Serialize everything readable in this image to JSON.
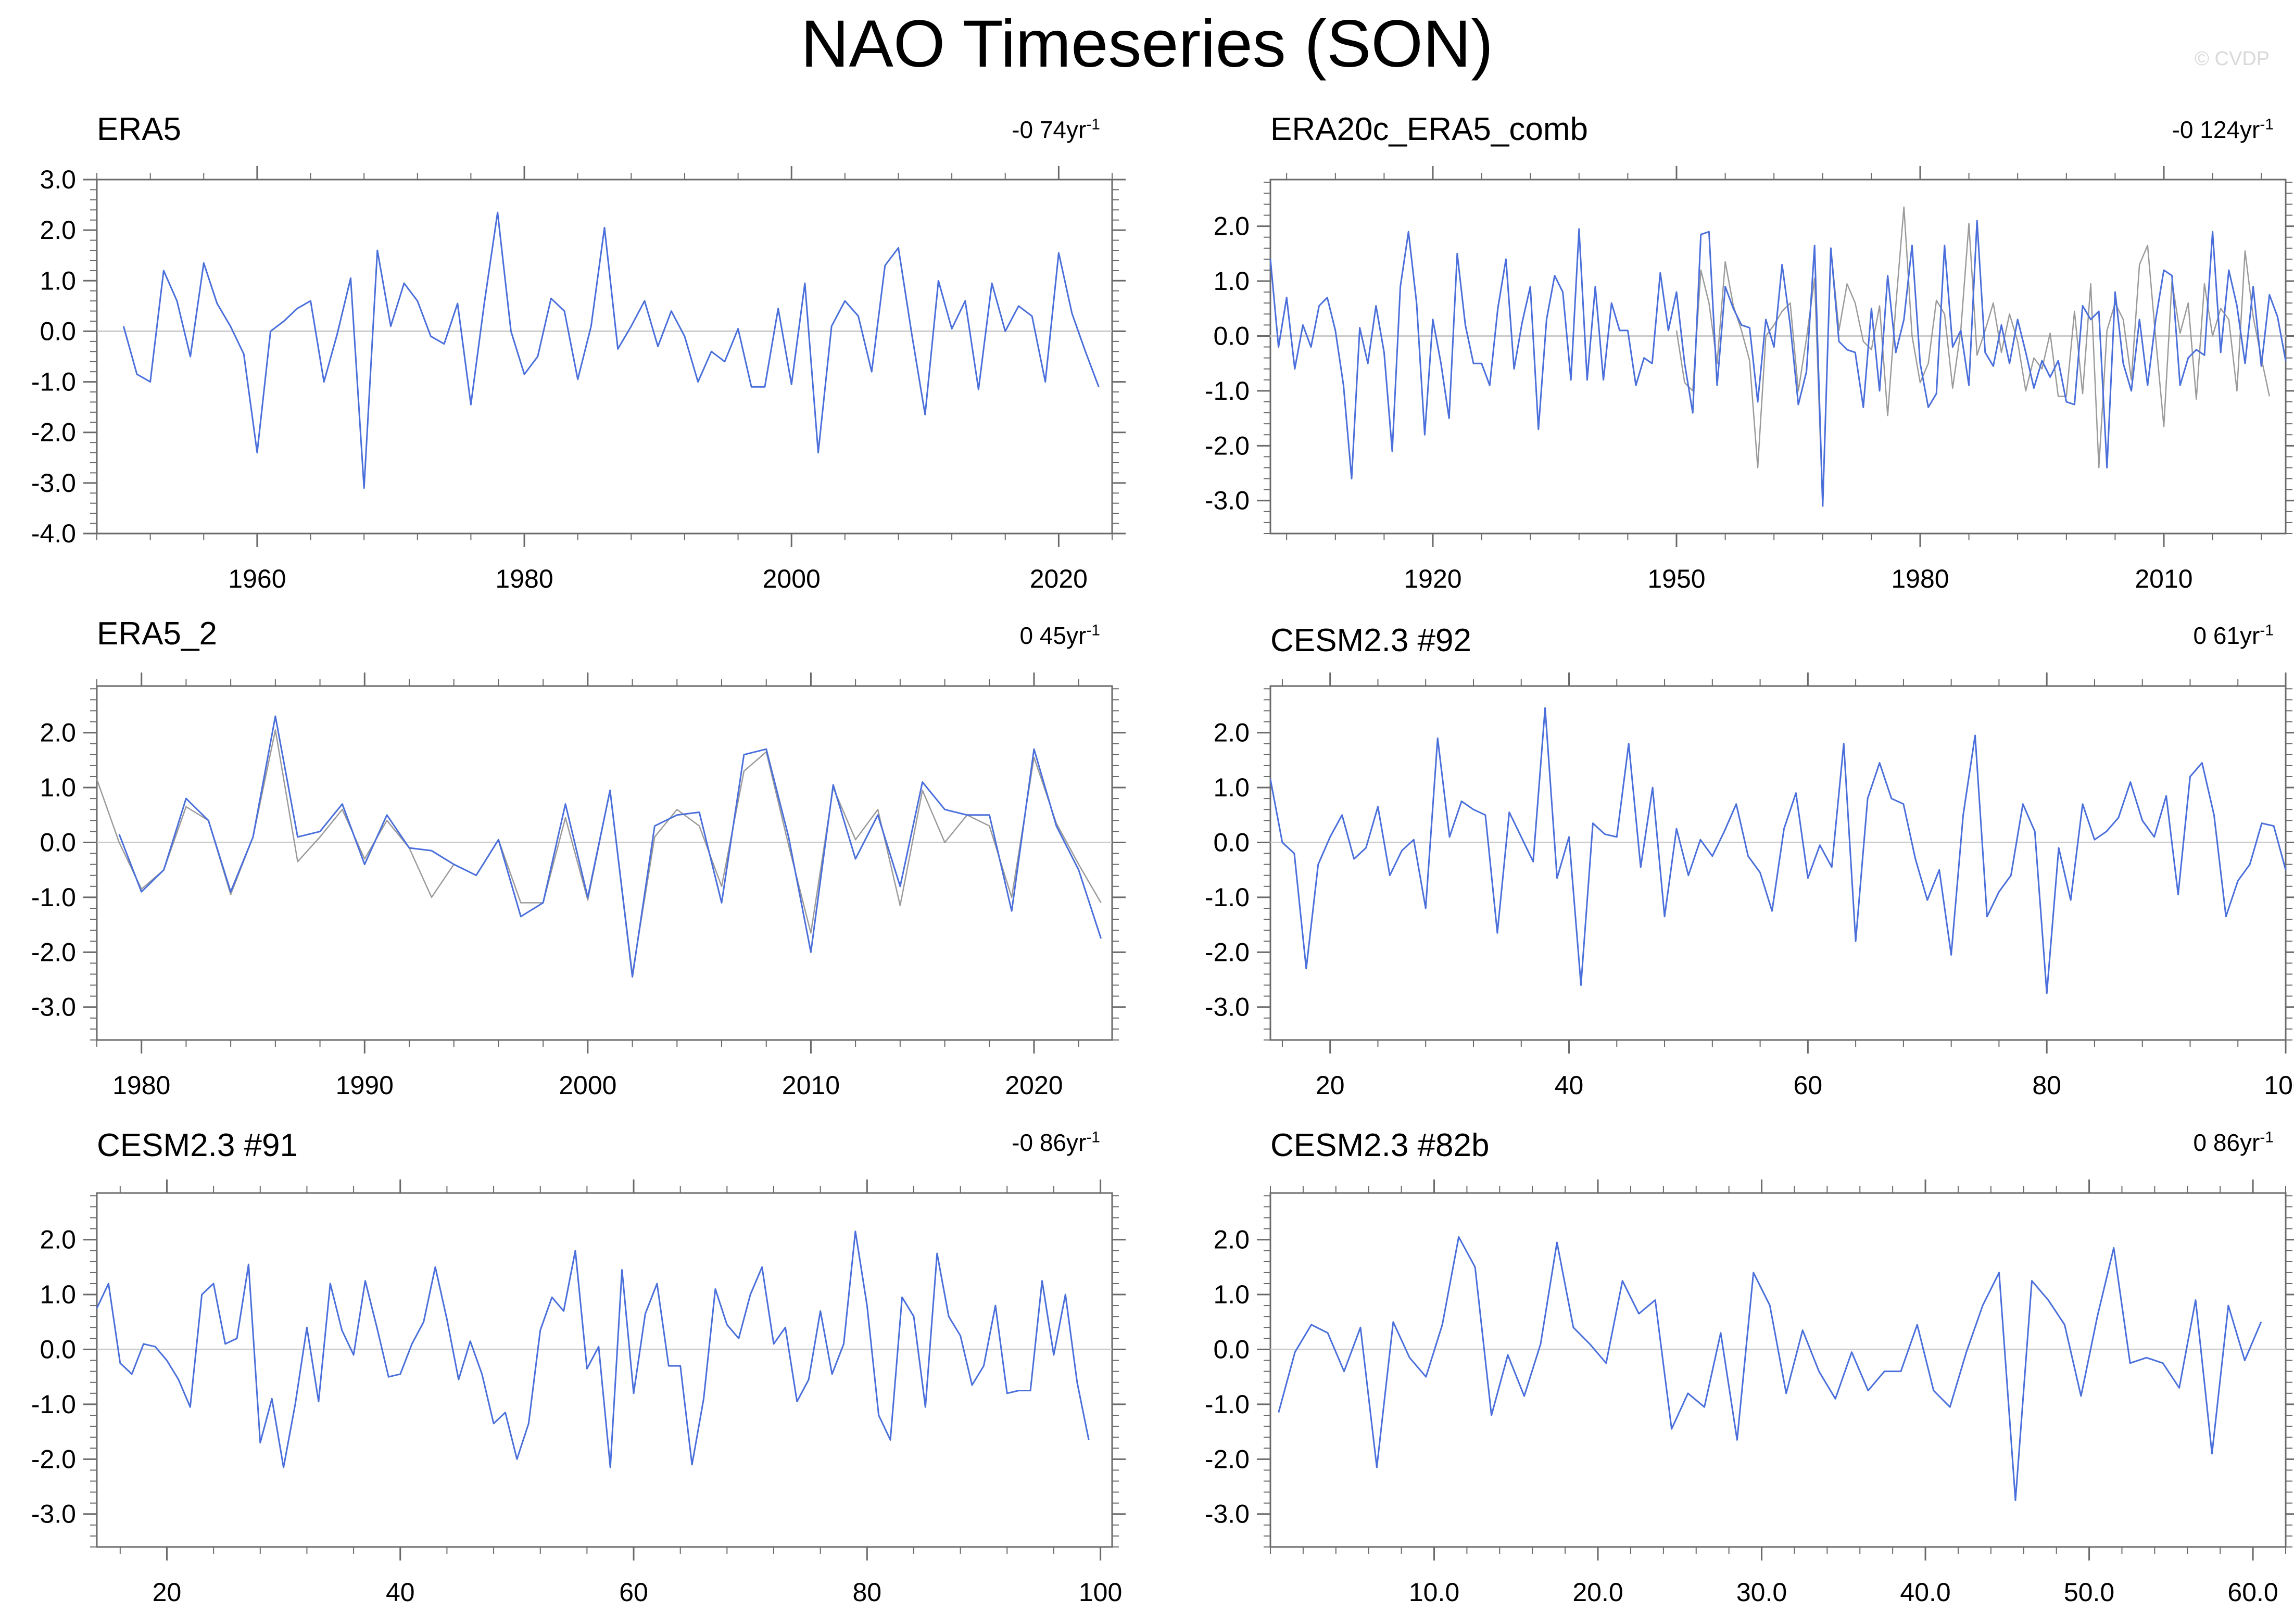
{
  "figure": {
    "title": "NAO Timeseries (SON)",
    "watermark": "© CVDP"
  },
  "colors": {
    "primary": "#4a6fdb",
    "secondary": "#9a9a9a",
    "zero_line": "#cccccc",
    "frame": "#6a6a6a"
  },
  "chart_data": [
    {
      "type": "line",
      "title": "ERA5",
      "trend_value": "-0 74yr",
      "trend_unit_exp": "-1",
      "xlim": [
        1948,
        2024
      ],
      "ylim": [
        -4.0,
        3.0
      ],
      "xticks": [
        1960,
        1980,
        2000,
        2020
      ],
      "xtick_labels": [
        "1960",
        "1980",
        "2000",
        "2020"
      ],
      "yticks": [
        -4,
        -3,
        -2,
        -1,
        0,
        1,
        2,
        3
      ],
      "ytick_labels": [
        "-4.0",
        "-3.0",
        "-2.0",
        "-1.0",
        "0.0",
        "1.0",
        "2.0",
        "3.0"
      ],
      "series": [
        {
          "name": "ERA5",
          "x_start": 1950,
          "x_step": 1,
          "values": [
            0.1,
            -0.85,
            -1.0,
            1.2,
            0.6,
            -0.5,
            1.35,
            0.55,
            0.1,
            -0.45,
            -2.4,
            0.0,
            0.2,
            0.45,
            0.6,
            -1.0,
            -0.05,
            1.05,
            -3.1,
            1.6,
            0.1,
            0.95,
            0.6,
            -0.1,
            -0.25,
            0.55,
            -1.45,
            0.55,
            2.35,
            0.0,
            -0.85,
            -0.5,
            0.65,
            0.4,
            -0.95,
            0.1,
            2.05,
            -0.35,
            0.1,
            0.6,
            -0.3,
            0.4,
            -0.1,
            -1.0,
            -0.4,
            -0.6,
            0.05,
            -1.1,
            -1.1,
            0.45,
            -1.05,
            0.95,
            -2.4,
            0.1,
            0.6,
            0.3,
            -0.8,
            1.3,
            1.65,
            -0.05,
            -1.65,
            1.0,
            0.05,
            0.6,
            -1.15,
            0.95,
            0.0,
            0.5,
            0.3,
            -1.0,
            1.55,
            0.35,
            -0.4,
            -1.1
          ]
        }
      ]
    },
    {
      "type": "line",
      "title": "ERA20c_ERA5_comb",
      "trend_value": "-0 124yr",
      "trend_unit_exp": "-1",
      "xlim": [
        1900,
        2025
      ],
      "ylim": [
        -3.6,
        2.85
      ],
      "xticks": [
        1920,
        1950,
        1980,
        2010
      ],
      "xtick_labels": [
        "1920",
        "1950",
        "1980",
        "2010"
      ],
      "yticks": [
        -3,
        -2,
        -1,
        0,
        1,
        2
      ],
      "ytick_labels": [
        "-3.0",
        "-2.0",
        "-1.0",
        "0.0",
        "1.0",
        "2.0"
      ],
      "series": [
        {
          "name": "ERA20c",
          "x_start": 1900,
          "x_step": 1,
          "values": [
            1.4,
            -0.2,
            0.7,
            -0.6,
            0.2,
            -0.2,
            0.55,
            0.7,
            0.1,
            -0.9,
            -2.6,
            0.15,
            -0.5,
            0.55,
            -0.3,
            -2.1,
            0.9,
            1.9,
            0.6,
            -1.8,
            0.3,
            -0.5,
            -1.5,
            1.5,
            0.2,
            -0.5,
            -0.5,
            -0.9,
            0.5,
            1.4,
            -0.6,
            0.25,
            0.9,
            -1.7,
            0.3,
            1.1,
            0.8,
            -0.8,
            1.95,
            -0.8,
            0.9,
            -0.8,
            0.6,
            0.1,
            0.1,
            -0.9,
            -0.4,
            -0.5,
            1.15,
            0.1,
            0.8,
            -0.5,
            -1.4,
            1.85,
            1.9,
            -0.9,
            0.9,
            0.5,
            0.2,
            0.15,
            -1.2,
            0.3,
            -0.2,
            1.3,
            0.2,
            -1.25,
            -0.65,
            1.65,
            -3.1,
            1.6,
            -0.1,
            -0.25,
            -0.3,
            -1.3,
            0.5,
            -1.0,
            1.1,
            -0.3,
            0.3,
            1.65,
            -0.5,
            -1.3,
            -1.05,
            1.65,
            -0.2,
            0.1,
            -0.9,
            2.1,
            -0.3,
            -0.55,
            0.2,
            -0.5,
            0.3,
            -0.3,
            -0.95,
            -0.45,
            -0.75,
            -0.45,
            -1.2,
            -1.25,
            0.55,
            0.3,
            0.45,
            -2.4,
            0.8,
            -0.5,
            -1.0,
            0.3,
            -0.9,
            0.3,
            1.2,
            1.1,
            -0.9,
            -0.4,
            -0.25,
            -0.35,
            1.9,
            -0.3,
            1.2,
            0.55,
            -0.5,
            0.9,
            -0.55,
            0.75,
            0.35,
            -0.45
          ]
        },
        {
          "name": "ERA5",
          "x_start": 1950,
          "x_step": 1,
          "values": [
            0.1,
            -0.85,
            -1.0,
            1.2,
            0.6,
            -0.5,
            1.35,
            0.55,
            0.1,
            -0.45,
            -2.4,
            0.0,
            0.2,
            0.45,
            0.6,
            -1.0,
            -0.05,
            1.05,
            -3.1,
            1.6,
            0.1,
            0.95,
            0.6,
            -0.1,
            -0.25,
            0.55,
            -1.45,
            0.55,
            2.35,
            0.0,
            -0.85,
            -0.5,
            0.65,
            0.4,
            -0.95,
            0.1,
            2.05,
            -0.35,
            0.1,
            0.6,
            -0.3,
            0.4,
            -0.1,
            -1.0,
            -0.4,
            -0.6,
            0.05,
            -1.1,
            -1.1,
            0.45,
            -1.05,
            0.95,
            -2.4,
            0.1,
            0.6,
            0.3,
            -0.8,
            1.3,
            1.65,
            -0.05,
            -1.65,
            1.0,
            0.05,
            0.6,
            -1.15,
            0.95,
            0.0,
            0.5,
            0.3,
            -1.0,
            1.55,
            0.35,
            -0.4,
            -1.1
          ]
        }
      ]
    },
    {
      "type": "line",
      "title": "ERA5_2",
      "trend_value": "0 45yr",
      "trend_unit_exp": "-1",
      "xlim": [
        1978,
        2023.5
      ],
      "ylim": [
        -3.6,
        2.85
      ],
      "xticks": [
        1980,
        1990,
        2000,
        2010,
        2020
      ],
      "xtick_labels": [
        "1980",
        "1990",
        "2000",
        "2010",
        "2020"
      ],
      "yticks": [
        -3,
        -2,
        -1,
        0,
        1,
        2
      ],
      "ytick_labels": [
        "-3.0",
        "-2.0",
        "-1.0",
        "0.0",
        "1.0",
        "2.0"
      ],
      "series": [
        {
          "name": "ERA5_2",
          "x_start": 1979,
          "x_step": 1,
          "values": [
            0.15,
            -0.9,
            -0.5,
            0.8,
            0.4,
            -0.9,
            0.1,
            2.3,
            0.1,
            0.2,
            0.7,
            -0.4,
            0.5,
            -0.1,
            -0.15,
            -0.4,
            -0.6,
            0.05,
            -1.35,
            -1.1,
            0.7,
            -1.0,
            0.95,
            -2.45,
            0.3,
            0.5,
            0.55,
            -1.1,
            1.6,
            1.7,
            0.1,
            -2.0,
            1.05,
            -0.3,
            0.5,
            -0.8,
            1.1,
            0.6,
            0.5,
            0.5,
            -1.25,
            1.7,
            0.3,
            -0.5,
            -1.75
          ]
        },
        {
          "name": "ERA5",
          "x_start": 1978,
          "x_step": 1,
          "values": [
            1.15,
            0.0,
            -0.85,
            -0.5,
            0.65,
            0.4,
            -0.95,
            0.1,
            2.05,
            -0.35,
            0.1,
            0.6,
            -0.3,
            0.4,
            -0.1,
            -1.0,
            -0.4,
            -0.6,
            0.05,
            -1.1,
            -1.1,
            0.45,
            -1.05,
            0.95,
            -2.4,
            0.1,
            0.6,
            0.3,
            -0.8,
            1.3,
            1.65,
            -0.05,
            -1.65,
            1.0,
            0.05,
            0.6,
            -1.15,
            0.95,
            0.0,
            0.5,
            0.3,
            -1.0,
            1.55,
            0.35,
            -0.4,
            -1.1
          ]
        }
      ]
    },
    {
      "type": "line",
      "title": "CESM2.3 #92",
      "trend_value": "0 61yr",
      "trend_unit_exp": "-1",
      "xlim": [
        15,
        100
      ],
      "ylim": [
        -3.6,
        2.85
      ],
      "xticks": [
        20,
        40,
        60,
        80,
        100
      ],
      "xtick_labels": [
        "20",
        "40",
        "60",
        "80",
        "100"
      ],
      "yticks": [
        -3,
        -2,
        -1,
        0,
        1,
        2
      ],
      "ytick_labels": [
        "-3.0",
        "-2.0",
        "-1.0",
        "0.0",
        "1.0",
        "2.0"
      ],
      "series": [
        {
          "name": "CESM2.3 #92",
          "x_start": 15,
          "x_step": 1,
          "values": [
            1.15,
            0.0,
            -0.2,
            -2.3,
            -0.4,
            0.1,
            0.5,
            -0.3,
            -0.1,
            0.65,
            -0.6,
            -0.15,
            0.05,
            -1.2,
            1.9,
            0.1,
            0.75,
            0.6,
            0.5,
            -1.65,
            0.55,
            0.1,
            -0.35,
            2.45,
            -0.65,
            0.1,
            -2.6,
            0.35,
            0.15,
            0.1,
            1.8,
            -0.45,
            1.0,
            -1.35,
            0.25,
            -0.6,
            0.05,
            -0.25,
            0.2,
            0.7,
            -0.25,
            -0.55,
            -1.25,
            0.25,
            0.9,
            -0.65,
            -0.05,
            -0.45,
            1.8,
            -1.8,
            0.8,
            1.45,
            0.8,
            0.7,
            -0.3,
            -1.05,
            -0.5,
            -2.05,
            0.5,
            1.95,
            -1.35,
            -0.9,
            -0.6,
            0.7,
            0.2,
            -2.75,
            -0.1,
            -1.05,
            0.7,
            0.05,
            0.2,
            0.45,
            1.1,
            0.4,
            0.1,
            0.85,
            -0.95,
            1.2,
            1.45,
            0.5,
            -1.35,
            -0.7,
            -0.4,
            0.35,
            0.3,
            -0.5
          ]
        }
      ]
    },
    {
      "type": "line",
      "title": "CESM2.3 #91",
      "trend_value": "-0 86yr",
      "trend_unit_exp": "-1",
      "xlim": [
        14,
        101
      ],
      "ylim": [
        -3.6,
        2.85
      ],
      "xticks": [
        20,
        40,
        60,
        80,
        100
      ],
      "xtick_labels": [
        "20",
        "40",
        "60",
        "80",
        "100"
      ],
      "yticks": [
        -3,
        -2,
        -1,
        0,
        1,
        2
      ],
      "ytick_labels": [
        "-3.0",
        "-2.0",
        "-1.0",
        "0.0",
        "1.0",
        "2.0"
      ],
      "series": [
        {
          "name": "CESM2.3 #91",
          "x_start": 14,
          "x_step": 1,
          "values": [
            0.75,
            1.2,
            -0.25,
            -0.45,
            0.1,
            0.05,
            -0.2,
            -0.55,
            -1.05,
            1.0,
            1.2,
            0.1,
            0.2,
            1.55,
            -1.7,
            -0.9,
            -2.15,
            -1.0,
            0.4,
            -0.95,
            1.2,
            0.35,
            -0.1,
            1.25,
            0.4,
            -0.5,
            -0.45,
            0.1,
            0.5,
            1.5,
            0.55,
            -0.55,
            0.15,
            -0.45,
            -1.35,
            -1.15,
            -2.0,
            -1.35,
            0.35,
            0.95,
            0.7,
            1.8,
            -0.35,
            0.05,
            -2.15,
            1.45,
            -0.8,
            0.65,
            1.2,
            -0.3,
            -0.3,
            -2.1,
            -0.9,
            1.1,
            0.45,
            0.2,
            1.0,
            1.5,
            0.1,
            0.4,
            -0.95,
            -0.55,
            0.7,
            -0.45,
            0.1,
            2.15,
            0.8,
            -1.2,
            -1.65,
            0.95,
            0.6,
            -1.05,
            1.75,
            0.6,
            0.25,
            -0.65,
            -0.3,
            0.8,
            -0.8,
            -0.75,
            -0.75,
            1.25,
            -0.1,
            1.0,
            -0.6,
            -1.65
          ]
        }
      ]
    },
    {
      "type": "line",
      "title": "CESM2.3 #82b",
      "trend_value": "0 86yr",
      "trend_unit_exp": "-1",
      "xlim": [
        0,
        62
      ],
      "ylim": [
        -3.6,
        2.85
      ],
      "xticks": [
        10,
        20,
        30,
        40,
        50,
        60
      ],
      "xtick_labels": [
        "10.0",
        "20.0",
        "30.0",
        "40.0",
        "50.0",
        "60.0"
      ],
      "yticks": [
        -3,
        -2,
        -1,
        0,
        1,
        2
      ],
      "ytick_labels": [
        "-3.0",
        "-2.0",
        "-1.0",
        "0.0",
        "1.0",
        "2.0"
      ],
      "series": [
        {
          "name": "CESM2.3 #82b",
          "x_start": 0.5,
          "x_step": 1,
          "values": [
            -1.15,
            -0.05,
            0.45,
            0.3,
            -0.4,
            0.4,
            -2.15,
            0.5,
            -0.15,
            -0.5,
            0.45,
            2.05,
            1.5,
            -1.2,
            -0.1,
            -0.85,
            0.1,
            1.95,
            0.4,
            0.1,
            -0.25,
            1.25,
            0.65,
            0.9,
            -1.45,
            -0.8,
            -1.05,
            0.3,
            -1.65,
            1.4,
            0.8,
            -0.8,
            0.35,
            -0.4,
            -0.9,
            -0.05,
            -0.75,
            -0.4,
            -0.4,
            0.45,
            -0.75,
            -1.05,
            -0.05,
            0.8,
            1.4,
            -2.75,
            1.25,
            0.9,
            0.45,
            -0.85,
            0.6,
            1.85,
            -0.25,
            -0.15,
            -0.25,
            -0.7,
            0.9,
            -1.9,
            0.8,
            -0.2,
            0.5
          ]
        }
      ]
    }
  ]
}
